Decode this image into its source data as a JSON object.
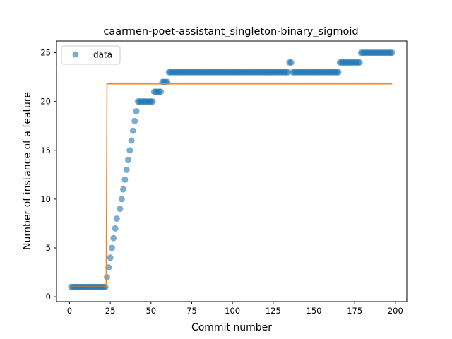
{
  "chart_data": {
    "type": "scatter",
    "title": "caarmen-poet-assistant_singleton-binary_sigmoid",
    "xlabel": "Commit number",
    "ylabel": "Number of instance of a feature",
    "xlim": [
      -8,
      207
    ],
    "ylim": [
      -0.5,
      26.2
    ],
    "xticks": [
      0,
      25,
      50,
      75,
      100,
      125,
      150,
      175,
      200
    ],
    "yticks": [
      0,
      5,
      10,
      15,
      20,
      25
    ],
    "grid": false,
    "legend": {
      "placement": "top-left",
      "entries": [
        "data"
      ]
    },
    "colors": {
      "data": "#1f77b4",
      "fit": "#ff7f0e"
    },
    "series": [
      {
        "name": "data",
        "kind": "scatter",
        "runs": [
          {
            "x_from": 1,
            "x_to": 22,
            "y": 1
          },
          {
            "x": 23,
            "y": 2
          },
          {
            "x": 24,
            "y": 3
          },
          {
            "x": 25,
            "y": 4
          },
          {
            "x": 26,
            "y": 5
          },
          {
            "x": 27,
            "y": 6
          },
          {
            "x": 28,
            "y": 7
          },
          {
            "x": 29,
            "y": 8
          },
          {
            "x": 31,
            "y": 9
          },
          {
            "x": 32,
            "y": 10
          },
          {
            "x": 33,
            "y": 11
          },
          {
            "x": 34,
            "y": 12
          },
          {
            "x": 35,
            "y": 13
          },
          {
            "x": 36,
            "y": 14
          },
          {
            "x": 37,
            "y": 15
          },
          {
            "x": 38,
            "y": 16
          },
          {
            "x": 39,
            "y": 17
          },
          {
            "x": 40,
            "y": 18
          },
          {
            "x": 41,
            "y": 19
          },
          {
            "x_from": 42,
            "x_to": 51,
            "y": 20
          },
          {
            "x_from": 52,
            "x_to": 56,
            "y": 21
          },
          {
            "x_from": 57,
            "x_to": 60,
            "y": 22
          },
          {
            "x_from": 61,
            "x_to": 134,
            "y": 23
          },
          {
            "x_from": 135,
            "x_to": 136,
            "y": 24
          },
          {
            "x_from": 137,
            "x_to": 165,
            "y": 23
          },
          {
            "x_from": 166,
            "x_to": 178,
            "y": 24
          },
          {
            "x_from": 179,
            "x_to": 198,
            "y": 25
          }
        ]
      },
      {
        "name": "",
        "kind": "line",
        "points": [
          [
            1,
            1.0
          ],
          [
            22.5,
            1.0
          ],
          [
            23,
            21.8
          ],
          [
            198,
            21.8
          ]
        ]
      }
    ]
  }
}
